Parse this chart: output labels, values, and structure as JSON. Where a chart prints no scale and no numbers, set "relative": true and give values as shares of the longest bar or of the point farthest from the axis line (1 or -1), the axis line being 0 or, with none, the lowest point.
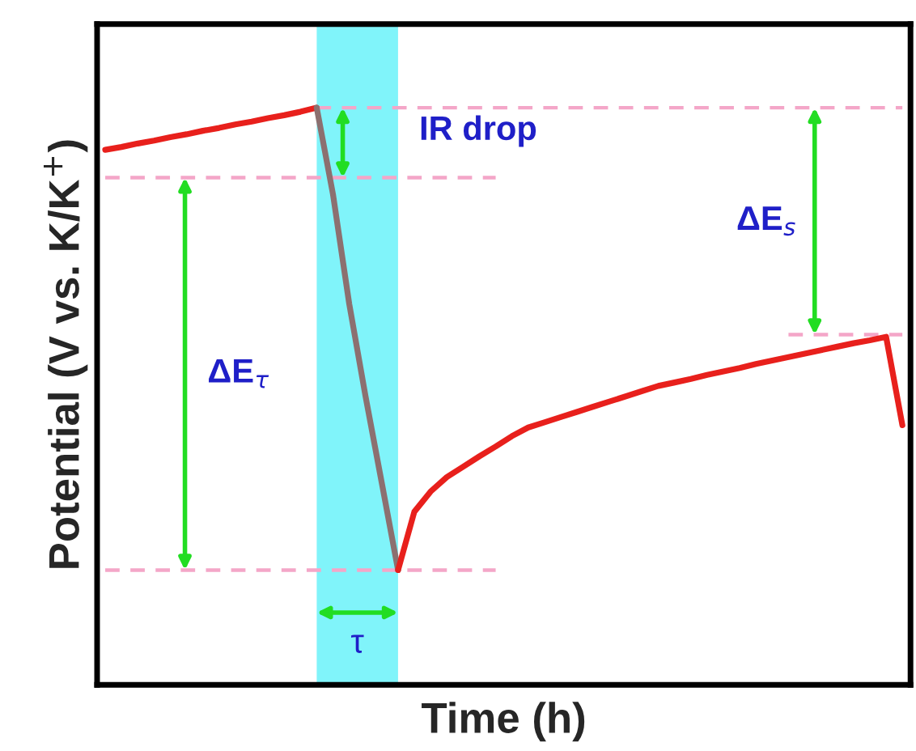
{
  "chart_data": {
    "type": "line",
    "relative": true,
    "xlabel": "Time (h)",
    "ylabel": "Potential (V vs. K/K$^{+}$)",
    "legend": false,
    "line_style": "solid",
    "marker": "none",
    "categories": [
      null,
      null,
      null,
      null,
      null,
      null,
      null,
      null,
      null,
      null,
      null,
      null,
      null,
      null,
      null,
      null,
      null,
      null,
      null,
      null,
      null,
      null,
      null,
      null,
      null,
      null,
      null,
      null,
      null,
      null,
      null,
      null,
      null,
      null,
      null,
      null,
      null,
      null,
      null,
      null,
      null,
      null,
      null,
      null,
      null,
      null,
      null,
      null,
      null,
      null
    ],
    "series": [
      {
        "color": "#f4a6c8",
        "line_style": "dashed",
        "values": [
          null,
          null,
          null,
          null,
          null,
          null,
          null,
          null,
          null,
          null,
          null,
          null,
          null,
          1.0,
          1.0,
          1.0,
          1.0,
          1.0,
          1.0,
          1.0,
          1.0,
          1.0,
          1.0,
          1.0,
          1.0,
          1.0,
          1.0,
          1.0,
          1.0,
          1.0,
          1.0,
          1.0,
          1.0,
          1.0,
          1.0,
          1.0,
          1.0,
          1.0,
          1.0,
          1.0,
          1.0,
          1.0,
          1.0,
          1.0,
          1.0,
          1.0,
          1.0,
          1.0,
          1.0,
          1.0
        ]
      },
      {
        "color": "#f4a6c8",
        "line_style": "dashed",
        "values": [
          0.879,
          0.879,
          0.879,
          0.879,
          0.879,
          0.879,
          0.879,
          0.879,
          0.879,
          0.879,
          0.879,
          0.879,
          0.879,
          0.879,
          0.879,
          0.879,
          0.879,
          0.879,
          0.879,
          0.879,
          0.879,
          0.879,
          0.879,
          0.879,
          0.879,
          null,
          null,
          null,
          null,
          null,
          null,
          null,
          null,
          null,
          null,
          null,
          null,
          null,
          null,
          null,
          null,
          null,
          null,
          null,
          null,
          null,
          null,
          null,
          null,
          null
        ]
      },
      {
        "color": "#f4a6c8",
        "line_style": "dashed",
        "values": [
          0.199,
          0.199,
          0.199,
          0.199,
          0.199,
          0.199,
          0.199,
          0.199,
          0.199,
          0.199,
          0.199,
          0.199,
          0.199,
          0.199,
          0.199,
          0.199,
          0.199,
          0.199,
          0.199,
          0.199,
          0.199,
          0.199,
          0.199,
          0.199,
          0.199,
          null,
          null,
          null,
          null,
          null,
          null,
          null,
          null,
          null,
          null,
          null,
          null,
          null,
          null,
          null,
          null,
          null,
          null,
          null,
          null,
          null,
          null,
          null,
          null,
          null
        ]
      },
      {
        "color": "#f4a6c8",
        "line_style": "dashed",
        "values": [
          null,
          null,
          null,
          null,
          null,
          null,
          null,
          null,
          null,
          null,
          null,
          null,
          null,
          null,
          null,
          null,
          null,
          null,
          null,
          null,
          null,
          null,
          null,
          null,
          null,
          null,
          null,
          null,
          null,
          null,
          null,
          null,
          null,
          null,
          null,
          null,
          null,
          null,
          null,
          null,
          null,
          null,
          0.607,
          0.607,
          0.607,
          0.607,
          0.607,
          0.607,
          0.607,
          0.607
        ]
      },
      {
        "color": "#e8201c",
        "values": [
          0.927,
          0.932,
          0.938,
          0.943,
          0.949,
          0.954,
          0.96,
          0.965,
          0.971,
          0.976,
          0.982,
          0.987,
          0.993,
          1.0,
          null,
          null,
          null,
          null,
          null,
          null,
          null,
          null,
          null,
          null,
          null,
          null,
          null,
          null,
          null,
          null,
          null,
          null,
          null,
          null,
          null,
          null,
          null,
          null,
          null,
          null,
          null,
          null,
          null,
          null,
          null,
          null,
          null,
          null,
          null,
          null
        ]
      },
      {
        "color": "#8c7070",
        "values": [
          null,
          null,
          null,
          null,
          null,
          null,
          null,
          null,
          null,
          null,
          null,
          null,
          null,
          1.0,
          0.85,
          0.66,
          0.5,
          0.35,
          0.199,
          null,
          null,
          null,
          null,
          null,
          null,
          null,
          null,
          null,
          null,
          null,
          null,
          null,
          null,
          null,
          null,
          null,
          null,
          null,
          null,
          null,
          null,
          null,
          null,
          null,
          null,
          null,
          null,
          null,
          null,
          null
        ]
      },
      {
        "color": "#e8201c",
        "values": [
          null,
          null,
          null,
          null,
          null,
          null,
          null,
          null,
          null,
          null,
          null,
          null,
          null,
          null,
          null,
          null,
          null,
          null,
          0.199,
          0.3,
          0.335,
          0.36,
          0.378,
          0.396,
          0.413,
          0.431,
          0.446,
          0.455,
          0.464,
          0.473,
          0.482,
          0.491,
          0.5,
          0.509,
          0.518,
          0.524,
          0.53,
          0.537,
          0.543,
          0.549,
          0.556,
          0.562,
          0.568,
          0.574,
          0.58,
          0.586,
          0.592,
          0.597,
          0.603,
          0.45
        ]
      }
    ],
    "annotations": [
      "IR drop",
      "ΔE$_{τ}$",
      "ΔE$_{s}$",
      "τ"
    ]
  }
}
